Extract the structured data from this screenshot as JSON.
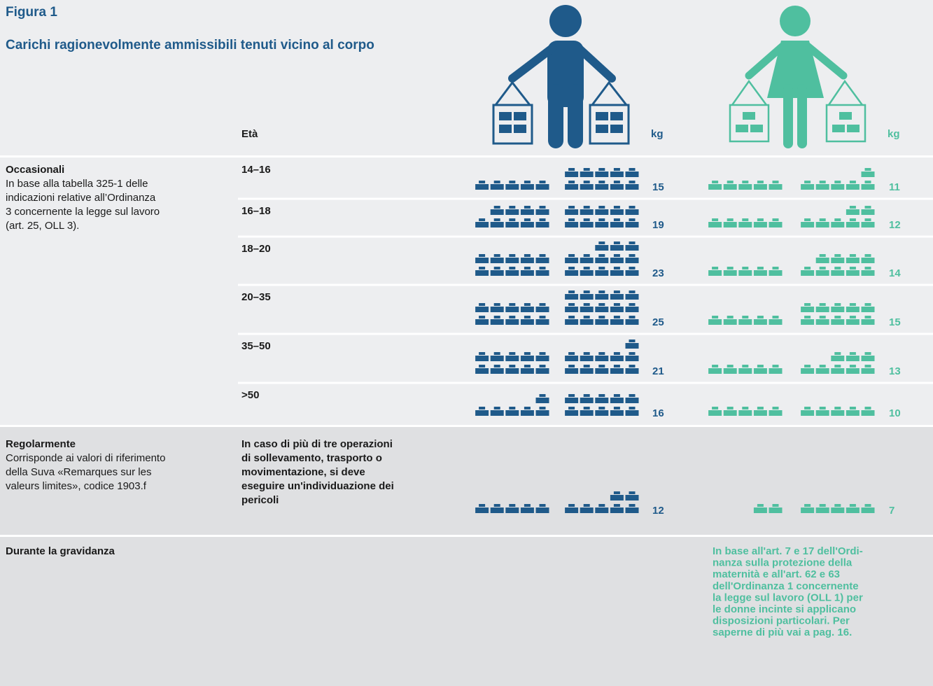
{
  "header": {
    "label": "Figura 1",
    "title": "Carichi ragionevolmente ammissibili tenuti vicino al corpo"
  },
  "columns": {
    "age": "Età",
    "men_unit": "kg",
    "women_unit": "kg"
  },
  "occasional": {
    "title": "Occasionali",
    "text": [
      "In base alla tabella 325-1 delle",
      "indicazioni relative all’Ordinanza",
      "3 concernente la legge sul lavoro",
      "(art. 25, OLL 3)."
    ],
    "rows": [
      {
        "age": "14–16",
        "men": 15,
        "women": 11
      },
      {
        "age": "16–18",
        "men": 19,
        "women": 12
      },
      {
        "age": "18–20",
        "men": 23,
        "women": 14
      },
      {
        "age": "20–35",
        "men": 25,
        "women": 15
      },
      {
        "age": "35–50",
        "men": 21,
        "women": 13
      },
      {
        "age": ">50",
        "men": 16,
        "women": 10
      }
    ]
  },
  "regular": {
    "title": "Regolarmente",
    "text": [
      "Corrisponde ai valori di riferimento",
      "della Suva «Remarques sur les",
      "valeurs limites», codice 1903.f"
    ],
    "note": [
      "In caso di più di tre operazioni",
      "di sollevamento, trasporto o",
      "movimentazione,  si deve",
      "eseguire un'individuazione dei",
      "pericoli"
    ],
    "men": 12,
    "women": 7
  },
  "pregnancy": {
    "title": "Durante la gravidanza",
    "note": [
      "In base all'art. 7 e 17 dell'Ordi-",
      "nanza sulla protezione della",
      "maternità e all'art. 62 e 63",
      "dell'Ordinanza 1 concernente",
      "la legge sul lavoro (OLL 1) per",
      "le donne incinte si applicano",
      "disposizioni particolari. Per",
      "saperne di più vai a pag. 16."
    ]
  }
}
